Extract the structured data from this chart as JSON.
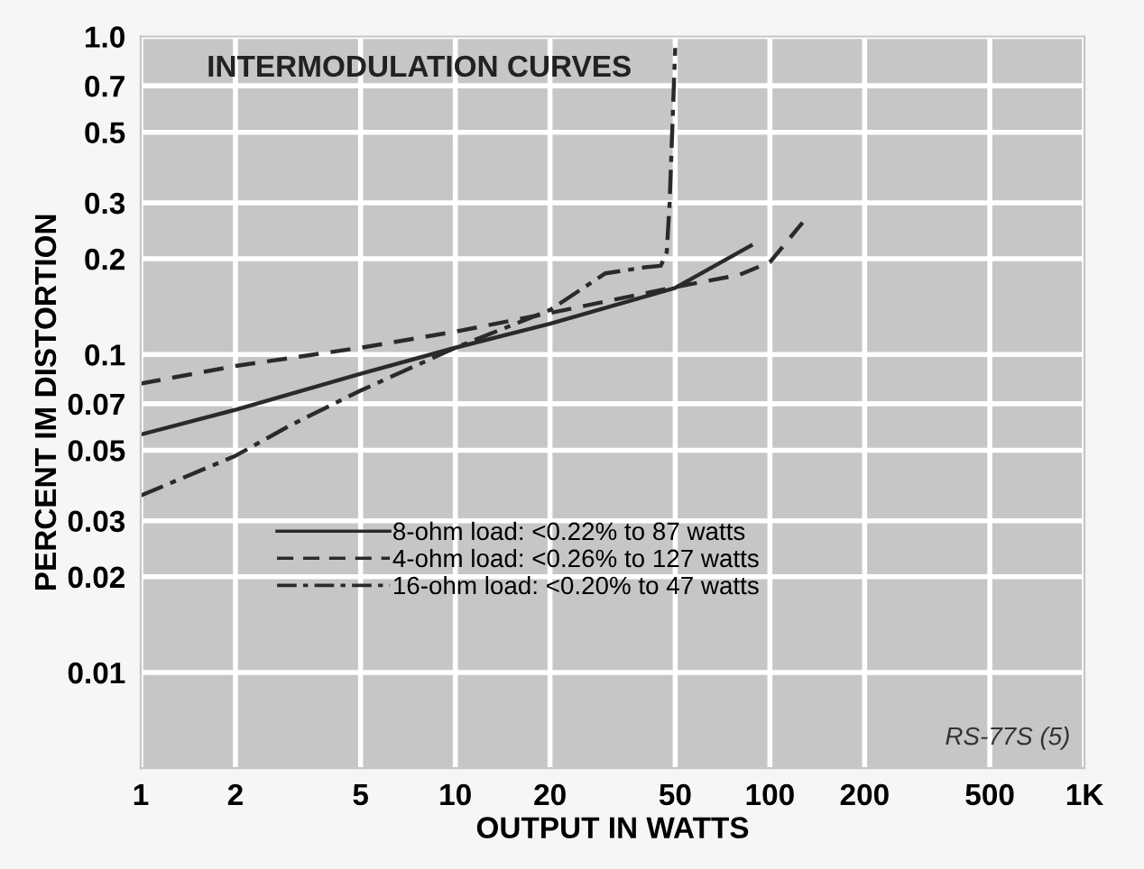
{
  "chart_data": {
    "type": "line",
    "title": "INTERMODULATION CURVES",
    "xlabel": "OUTPUT IN WATTS",
    "ylabel": "PERCENT IM DISTORTION",
    "log": "xy",
    "grid": true,
    "legend": "lower center",
    "xlim": [
      1,
      1000
    ],
    "xticks": [
      1,
      2,
      5,
      10,
      20,
      50,
      100,
      200,
      500,
      {
        "value": 1000,
        "label": "1K"
      }
    ],
    "ylim": [
      0.005,
      1.0
    ],
    "yticks": [
      0.01,
      0.02,
      0.03,
      0.05,
      0.07,
      0.1,
      0.2,
      0.3,
      0.5,
      0.7,
      {
        "value": 1.0,
        "label": "1.0"
      }
    ],
    "annotations": [
      "RS-77S (5)"
    ],
    "series": [
      {
        "name": "8-ohm load: <0.22% to 87 watts",
        "color": "#2a2a2a",
        "line_style": "solid",
        "x": [
          1,
          2,
          5,
          10,
          20,
          50,
          87
        ],
        "values": [
          0.056,
          0.067,
          0.087,
          0.105,
          0.125,
          0.162,
          0.22
        ]
      },
      {
        "name": "4-ohm load: <0.26% to 127 watts",
        "color": "#2a2a2a",
        "line_style": "dashed",
        "x": [
          1,
          2,
          5,
          10,
          20,
          50,
          80,
          100,
          127
        ],
        "values": [
          0.081,
          0.092,
          0.105,
          0.118,
          0.135,
          0.163,
          0.178,
          0.195,
          0.26
        ]
      },
      {
        "name": "16-ohm load: <0.20% to 47 watts",
        "color": "#2a2a2a",
        "line_style": "dashdot",
        "x": [
          1,
          2,
          3,
          5,
          10,
          20,
          30,
          40,
          45,
          47,
          48,
          50
        ],
        "values": [
          0.036,
          0.048,
          0.06,
          0.077,
          0.105,
          0.138,
          0.18,
          0.188,
          0.19,
          0.21,
          0.3,
          0.92
        ]
      }
    ]
  }
}
